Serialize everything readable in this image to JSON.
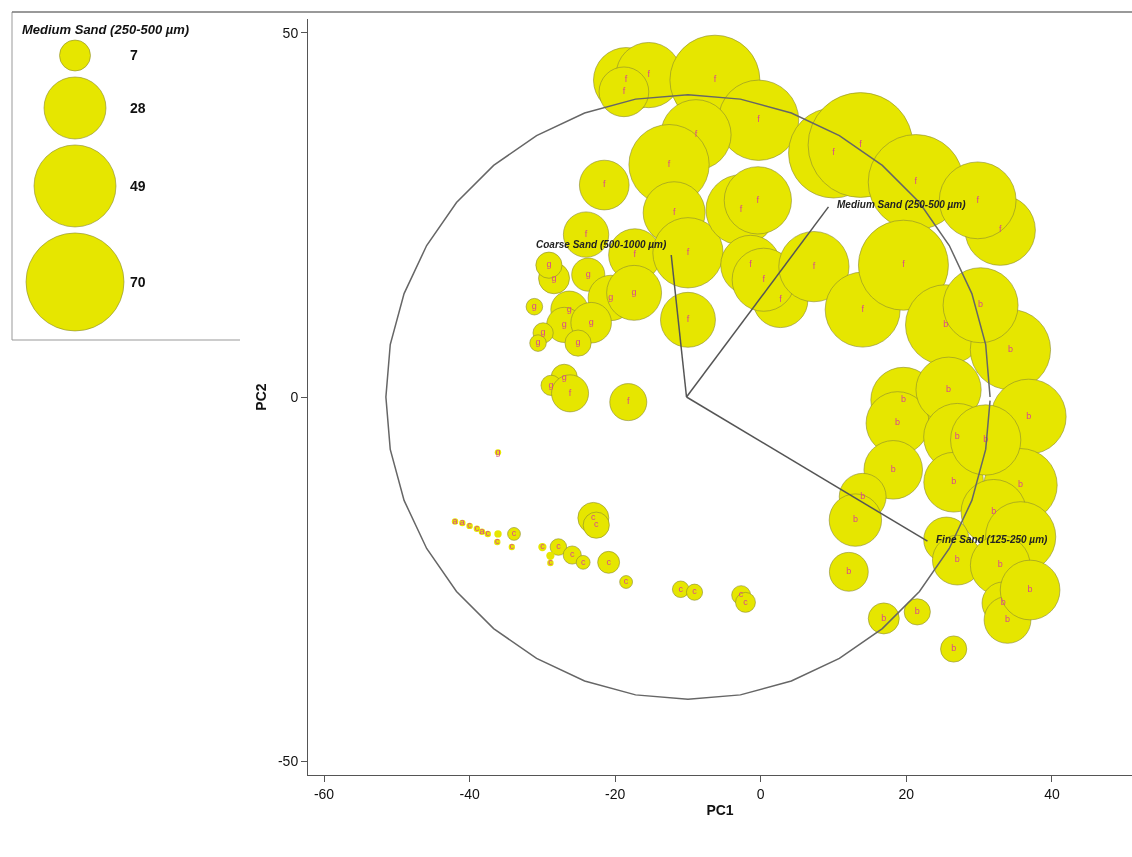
{
  "chart_data": {
    "type": "bubble",
    "xlabel": "PC1",
    "ylabel": "PC2",
    "legend_title": "Medium Sand (250-500 µm)",
    "size_legend": [
      7,
      28,
      49,
      70
    ],
    "xlim": [
      -62.2,
      51.0
    ],
    "ylim": [
      -51.9,
      51.9
    ],
    "xticks": [
      -60,
      -40,
      -20,
      0,
      20,
      40
    ],
    "yticks": [
      -50,
      0,
      50
    ],
    "series": [
      {
        "color": "#e6e600",
        "x": [
          -18.5,
          -15.4,
          -18.8,
          -6.3,
          -0.3,
          -8.9,
          -12.6,
          -21.5,
          -11.9,
          -24,
          -17.3,
          -10,
          -23.7,
          -28.4,
          -29.1,
          -20.6,
          -17.4,
          -26.3,
          -31.1,
          -27,
          -23.3,
          -29.9,
          -30.6,
          -25.1,
          -10,
          -27,
          -28.8,
          -26.2,
          -18.2,
          -2.7,
          -1.4,
          2.7,
          0.4,
          7.3,
          14,
          10,
          13.7,
          21.3,
          32.9,
          19.6,
          25.4,
          34.3,
          30.2,
          36.8,
          19.6,
          18.8,
          25.8,
          27,
          18.2,
          14,
          13,
          26.5,
          35.7,
          32,
          35.7,
          25.5,
          27,
          32.9,
          33.3,
          33.9,
          37,
          12.1,
          16.9,
          21.5,
          26.5,
          30.9,
          -0.4,
          29.8,
          -23,
          -22.6,
          -33.9,
          -36.1,
          -30,
          -27.8,
          -25.9,
          -24.4,
          -28.9,
          -20.9,
          -18.5,
          -11,
          -9.1,
          -2.7,
          -2.1,
          -36.1,
          -42,
          -41,
          -40,
          -39,
          -38.3,
          -37.5,
          -36.2,
          -34.2,
          -28.9
        ],
        "values": [
          43.5,
          44.2,
          41.9,
          43.5,
          38,
          36,
          31.9,
          29.1,
          25.3,
          22.3,
          19.5,
          19.8,
          16.8,
          16.3,
          18.1,
          13.6,
          14.3,
          12,
          12.4,
          9.9,
          10.2,
          8.8,
          7.4,
          7.4,
          10.6,
          2.7,
          1.6,
          0.5,
          -0.7,
          25.7,
          18.1,
          13.3,
          16.1,
          17.9,
          12,
          33.5,
          34.6,
          29.5,
          22.9,
          18.1,
          9.9,
          6.5,
          12.6,
          -2.7,
          -0.4,
          -3.6,
          1,
          -5.5,
          -10,
          -13.7,
          -16.9,
          -11.7,
          -12.1,
          -15.8,
          -19.2,
          -19.6,
          -22.4,
          -23.1,
          -28.3,
          -30.6,
          -26.5,
          -24,
          -30.4,
          -29.5,
          -34.6,
          -5.9,
          27,
          27,
          -16.6,
          -17.6,
          -18.8,
          -18.8,
          -20.6,
          -20.6,
          -21.7,
          -22.7,
          -21.8,
          -22.7,
          -25.4,
          -26.4,
          -26.8,
          -27.2,
          -28.2,
          -7.6,
          -17.1,
          -17.3,
          -17.7,
          -18.1,
          -18.5,
          -18.8,
          -19.9,
          -20.6,
          -22.8
        ],
        "sizes": [
          31,
          31,
          18,
          59,
          47,
          36,
          47,
          18,
          28,
          15,
          20,
          36,
          8,
          7,
          5,
          15,
          22,
          10,
          2,
          9,
          12,
          3,
          2,
          5,
          22,
          5,
          3,
          10,
          10,
          36,
          26,
          22,
          29,
          36,
          41,
          59,
          80,
          66,
          36,
          59,
          47,
          47,
          41,
          41,
          31,
          29,
          31,
          33,
          25,
          16,
          20,
          26,
          39,
          31,
          36,
          15,
          18,
          26,
          13,
          16,
          26,
          11,
          7,
          5,
          5,
          36,
          33,
          43,
          7,
          5,
          1.2,
          0.4,
          0.5,
          2,
          2.4,
          1.4,
          0.5,
          3.5,
          1.2,
          2,
          1.9,
          2.6,
          2.9,
          0.3,
          0.3,
          0.3,
          0.3,
          0.3,
          0.3,
          0.3,
          0.3,
          0.3,
          0.3
        ],
        "value_labels": [
          "f",
          "f",
          "f",
          "f",
          "f",
          "f",
          "f",
          "f",
          "f",
          "f",
          "f",
          "f",
          "g",
          "g",
          "g",
          "g",
          "g",
          "g",
          "g",
          "g",
          "g",
          "g",
          "g",
          "g",
          "f",
          "g",
          "g",
          "f",
          "f",
          "f",
          "f",
          "f",
          "f",
          "f",
          "f",
          "f",
          "f",
          "f",
          "f",
          "f",
          "b",
          "b",
          "b",
          "b",
          "b",
          "b",
          "b",
          "b",
          "b",
          "b",
          "b",
          "b",
          "b",
          "b",
          null,
          null,
          "b",
          "b",
          "b",
          "b",
          "b",
          "b",
          "b",
          "b",
          "b",
          "b",
          "f",
          "f",
          "c",
          "c",
          "c",
          null,
          "c",
          "c",
          "c",
          "c",
          null,
          "c",
          "c",
          "c",
          "c",
          "c",
          "c",
          "g",
          "a",
          "a",
          "c",
          "c",
          "a",
          "c",
          "c",
          "c",
          "c"
        ]
      },
      {
        "type": "line",
        "color": "#666666",
        "x": [
          31.5,
          30.9,
          29.0,
          25.9,
          21.8,
          16.7,
          10.8,
          4.2,
          -2.8,
          -10,
          -17.2,
          -24.2,
          -30.8,
          -36.7,
          -41.8,
          -45.9,
          -49.0,
          -50.9,
          -51.5,
          -50.9,
          -49.0,
          -45.9,
          -41.8,
          -36.7,
          -30.8,
          -24.2,
          -17.2,
          -10,
          -2.8,
          4.2,
          10.8,
          16.7,
          21.8,
          25.9,
          29.0,
          30.9,
          31.5
        ],
        "values": [
          -0.5,
          -7.2,
          -14.2,
          -20.8,
          -26.7,
          -31.8,
          -35.9,
          -39.0,
          -40.9,
          -41.5,
          -40.9,
          -39.0,
          -35.9,
          -31.8,
          -26.7,
          -20.8,
          -14.2,
          -7.2,
          0,
          7.2,
          14.2,
          20.8,
          26.7,
          31.8,
          35.9,
          39.0,
          40.9,
          41.5,
          40.9,
          39.0,
          35.9,
          31.8,
          26.7,
          20.8,
          14.2,
          7.2,
          0
        ]
      },
      {
        "type": "line",
        "color": "#555555",
        "name": "Coarse Sand (500-1000 µm)",
        "x": [
          -10.2,
          -12.3
        ],
        "values": [
          0,
          19.5
        ]
      },
      {
        "type": "line",
        "color": "#555555",
        "name": "Medium Sand (250-500 µm)",
        "x": [
          -10.2,
          9.3
        ],
        "values": [
          0,
          26.1
        ]
      },
      {
        "type": "line",
        "color": "#555555",
        "name": "Fine Sand (125-250 µm)",
        "x": [
          -10.2,
          22.9
        ],
        "values": [
          0,
          -19.8
        ]
      }
    ]
  }
}
